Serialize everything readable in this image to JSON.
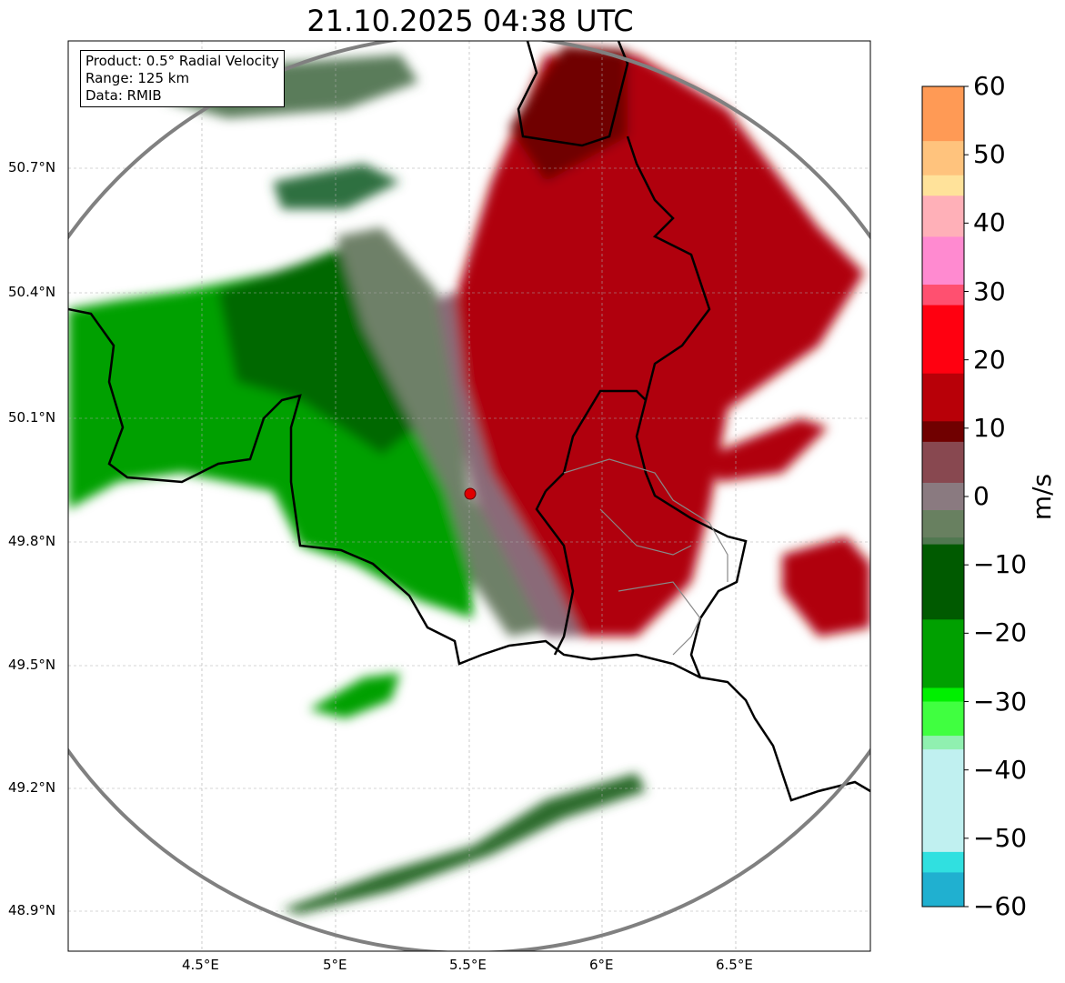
{
  "title": "21.10.2025 04:38 UTC",
  "info": {
    "product": "Product: 0.5° Radial Velocity",
    "range": "Range: 125 km",
    "data": "Data: RMIB"
  },
  "lat_ticks": [
    "50.7°N",
    "50.4°N",
    "50.1°N",
    "49.8°N",
    "49.5°N",
    "49.2°N",
    "48.9°N"
  ],
  "lon_ticks": [
    "4.5°E",
    "5°E",
    "5.5°E",
    "6°E",
    "6.5°E"
  ],
  "colorbar": {
    "label": "m/s",
    "min": -60,
    "max": 60,
    "ticks": [
      "60",
      "50",
      "40",
      "30",
      "20",
      "10",
      "0",
      "−10",
      "−20",
      "−30",
      "−40",
      "−50",
      "−60"
    ],
    "stops": [
      {
        "v": 60,
        "c": "#ff9a55"
      },
      {
        "v": 52,
        "c": "#ffc37d"
      },
      {
        "v": 47,
        "c": "#ffe29a"
      },
      {
        "v": 44,
        "c": "#ffb0b8"
      },
      {
        "v": 38,
        "c": "#ff8ad0"
      },
      {
        "v": 31,
        "c": "#ff5070"
      },
      {
        "v": 28,
        "c": "#ff0010"
      },
      {
        "v": 18,
        "c": "#b80008"
      },
      {
        "v": 11,
        "c": "#700000"
      },
      {
        "v": 8,
        "c": "#884850"
      },
      {
        "v": 2,
        "c": "#8a7a80"
      },
      {
        "v": -2,
        "c": "#688060"
      },
      {
        "v": -6,
        "c": "#507850"
      },
      {
        "v": -7,
        "c": "#005a00"
      },
      {
        "v": -18,
        "c": "#00a000"
      },
      {
        "v": -28,
        "c": "#00f000"
      },
      {
        "v": -30,
        "c": "#40ff40"
      },
      {
        "v": -35,
        "c": "#90f0b0"
      },
      {
        "v": -37,
        "c": "#c0f0f0"
      },
      {
        "v": -52,
        "c": "#30e0e0"
      },
      {
        "v": -55,
        "c": "#20b0d0"
      },
      {
        "v": -60,
        "c": "#2070c0"
      }
    ]
  },
  "colors": {
    "approaching": "#009a00",
    "neutral": "#6e8068",
    "receding": "#a00008",
    "radar_site": "#e00000"
  }
}
